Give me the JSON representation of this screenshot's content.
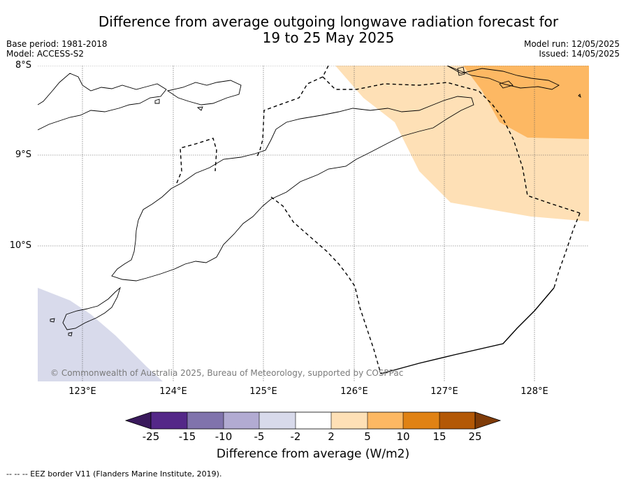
{
  "title_line1": "Difference from average outgoing longwave radiation forecast for",
  "title_line2": "19 to 25 May 2025",
  "base_period": "Base period: 1981-2018",
  "model": "Model: ACCESS-S2",
  "model_run": "Model run: 12/05/2025",
  "issued": "Issued: 14/05/2025",
  "lat_labels": [
    "8°S",
    "9°S",
    "10°S"
  ],
  "lon_labels": [
    "123°E",
    "124°E",
    "125°E",
    "126°E",
    "127°E",
    "128°E"
  ],
  "copyright": "© Commonwealth of Australia 2025, Bureau of Meteorology, supported by COSPPac",
  "colorbar": {
    "title": "Difference from average (W/m2)",
    "ticks": [
      "-25",
      "-15",
      "-10",
      "-5",
      "-2",
      "2",
      "5",
      "10",
      "15",
      "25"
    ],
    "colors": [
      "#3a1a5c",
      "#542788",
      "#8073ac",
      "#b2abd2",
      "#d8daeb",
      "#ffffff",
      "#fee0b6",
      "#fdb863",
      "#e08214",
      "#b35806",
      "#7f3b08"
    ]
  },
  "footer": "--  --  -- EEZ border V11 (Flanders Marine Institute, 2019)."
}
